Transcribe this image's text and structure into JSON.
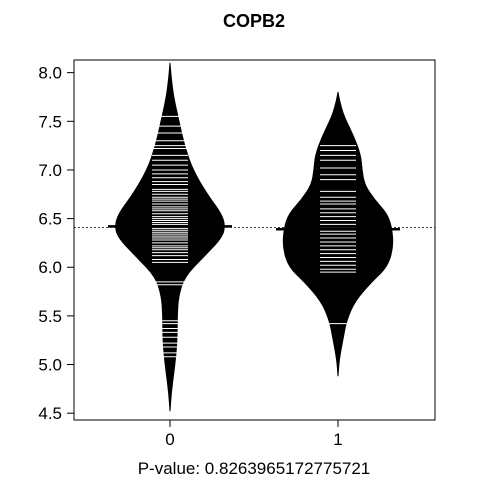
{
  "chart_data": {
    "type": "beanplot",
    "title": "COPB2",
    "xlabel": "P-value: 0.8263965172775721",
    "ylabel": "",
    "categories": [
      "0",
      "1"
    ],
    "ylim": [
      4.43,
      8.13
    ],
    "yticks": [
      4.5,
      5.0,
      5.5,
      6.0,
      6.5,
      7.0,
      7.5,
      8.0
    ],
    "ytick_labels": [
      "4.5",
      "5.0",
      "5.5",
      "6.0",
      "6.5",
      "7.0",
      "7.5",
      "8.0"
    ],
    "overall_average": 6.41,
    "colors": {
      "bean_fill": "#000000",
      "bean_lines": "#ffffff",
      "frame": "#000000"
    },
    "series": [
      {
        "category": "0",
        "average": 6.42,
        "density": [
          [
            4.52,
            0.0
          ],
          [
            4.7,
            0.02
          ],
          [
            4.9,
            0.06
          ],
          [
            5.1,
            0.1
          ],
          [
            5.3,
            0.12
          ],
          [
            5.5,
            0.12
          ],
          [
            5.7,
            0.14
          ],
          [
            5.9,
            0.24
          ],
          [
            6.1,
            0.55
          ],
          [
            6.3,
            0.86
          ],
          [
            6.42,
            0.92
          ],
          [
            6.55,
            0.86
          ],
          [
            6.75,
            0.62
          ],
          [
            7.0,
            0.38
          ],
          [
            7.25,
            0.24
          ],
          [
            7.5,
            0.15
          ],
          [
            7.75,
            0.06
          ],
          [
            7.95,
            0.02
          ],
          [
            8.1,
            0.0
          ]
        ],
        "observations": [
          5.08,
          5.12,
          5.18,
          5.22,
          5.28,
          5.33,
          5.37,
          5.42,
          5.45,
          5.82,
          5.85,
          6.05,
          6.08,
          6.12,
          6.15,
          6.18,
          6.2,
          6.22,
          6.25,
          6.28,
          6.3,
          6.32,
          6.34,
          6.36,
          6.38,
          6.4,
          6.42,
          6.44,
          6.46,
          6.48,
          6.5,
          6.52,
          6.55,
          6.58,
          6.6,
          6.62,
          6.65,
          6.68,
          6.7,
          6.72,
          6.75,
          6.78,
          6.8,
          6.85,
          6.88,
          6.92,
          6.96,
          7.0,
          7.05,
          7.1,
          7.15,
          7.22,
          7.25,
          7.3,
          7.38,
          7.45,
          7.55
        ]
      },
      {
        "category": "1",
        "average": 6.39,
        "density": [
          [
            4.88,
            0.0
          ],
          [
            5.05,
            0.02
          ],
          [
            5.25,
            0.08
          ],
          [
            5.45,
            0.14
          ],
          [
            5.65,
            0.28
          ],
          [
            5.85,
            0.56
          ],
          [
            6.0,
            0.82
          ],
          [
            6.2,
            0.92
          ],
          [
            6.4,
            0.9
          ],
          [
            6.55,
            0.82
          ],
          [
            6.7,
            0.6
          ],
          [
            6.85,
            0.44
          ],
          [
            7.0,
            0.4
          ],
          [
            7.15,
            0.38
          ],
          [
            7.35,
            0.26
          ],
          [
            7.55,
            0.1
          ],
          [
            7.7,
            0.03
          ],
          [
            7.8,
            0.0
          ]
        ],
        "observations": [
          5.42,
          5.95,
          5.98,
          6.02,
          6.06,
          6.1,
          6.14,
          6.18,
          6.22,
          6.26,
          6.3,
          6.34,
          6.37,
          6.4,
          6.44,
          6.48,
          6.52,
          6.56,
          6.6,
          6.65,
          6.68,
          6.72,
          6.78,
          6.9,
          6.95,
          7.02,
          7.1,
          7.15,
          7.2,
          7.25
        ]
      }
    ]
  }
}
